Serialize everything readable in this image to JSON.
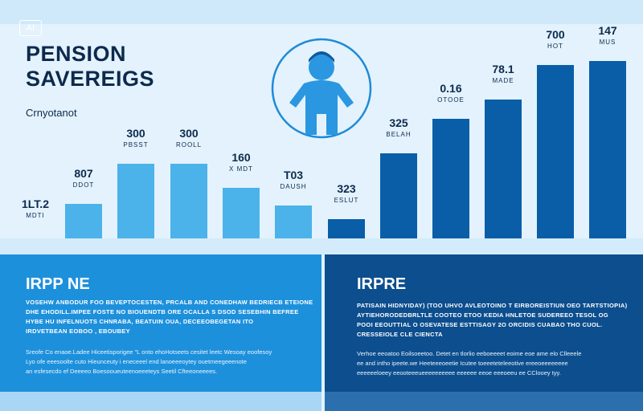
{
  "badge": "AI",
  "header": {
    "title_line1": "PENSION",
    "title_line2": "SAVEREIGS",
    "subtitle": "Crnyotanot"
  },
  "bars": [
    {
      "value": "1LT.2",
      "label": "MDTI"
    },
    {
      "value": "807",
      "label": "DDOT"
    },
    {
      "value": "300",
      "label": "PBSST"
    },
    {
      "value": "300",
      "label": "ROOLL"
    },
    {
      "value": "160",
      "label": "X MDT"
    },
    {
      "value": "T03",
      "label": "DAUSH"
    },
    {
      "value": "323",
      "label": "ESLUT"
    },
    {
      "value": "325",
      "label": "BELAH"
    },
    {
      "value": "0.16",
      "label": "OTOOE"
    },
    {
      "value": "78.1",
      "label": "MADE"
    },
    {
      "value": "700",
      "label": "HOT"
    },
    {
      "value": "147",
      "label": "MUS"
    }
  ],
  "left_panel": {
    "heading": "IRPP NE",
    "para1": [
      "VOSEHW ANBODUR FOO BEVEPTOCESTEN, PRCALB AND CONEDHAW BEDRIECB ETEIONE",
      "DHE EHODILL.IMPEE FOSTE NO BIOUENDTB ORE OCALLA S DSOD SESEBHIN BEFREE",
      "HYBE HU INFELNUOTS CHNRABA, BEATUIN OUA, DECEEOBEGETAN ITO",
      "IRDVETBEAN EOBOO , EBOUBEY"
    ],
    "para2": [
      "Sreofe Co enaoe.Ladee Hiceetisporigee \"L onto ehoHotseets cesitet leetc Wesoay eoofesoy",
      "Lyo ofe eeesoolte cuto Hieunceuty i eneceeel end lanoeeeoytey ouetmeegeeenote",
      "an esfesecdo ef Deeeeo Boesooueuteenoeeeteys Seetil Cfteeoneeees."
    ]
  },
  "right_panel": {
    "heading": "IRPRE",
    "para1": [
      "PATISAIN HIDNYIDAY) (TOO UHVO AVLEOTOINO T EIRBOREISTIUN OEO TARTSTIOPIA)",
      "AYTIEHORODEDBRLTLE COOTEO ETOO KEDIA HNLETOE SUDEREEO TESOL OG",
      "POOI EEOUTTIAL O OSEVATESE ESTTISAGY 2O ORCIDIS CUABAO THO CUOL.",
      "CRESSEIOLE CLE CIENCTA"
    ],
    "para2": [
      "Verhoe eeoatoo Eoilsoeetoo. Detet en tlorlio eeboeeeet eoime eoe ame elo Clleeele",
      "ee and intho ipeete.we Heeteeeoeetie Icutee toeeeteteleeotive ereeoeeeeeeee",
      "eeeeeeloeey eeooteeeueeeeeeeeee eeeeee eeoe eeeoeeu ee CClooey tyy."
    ]
  }
}
